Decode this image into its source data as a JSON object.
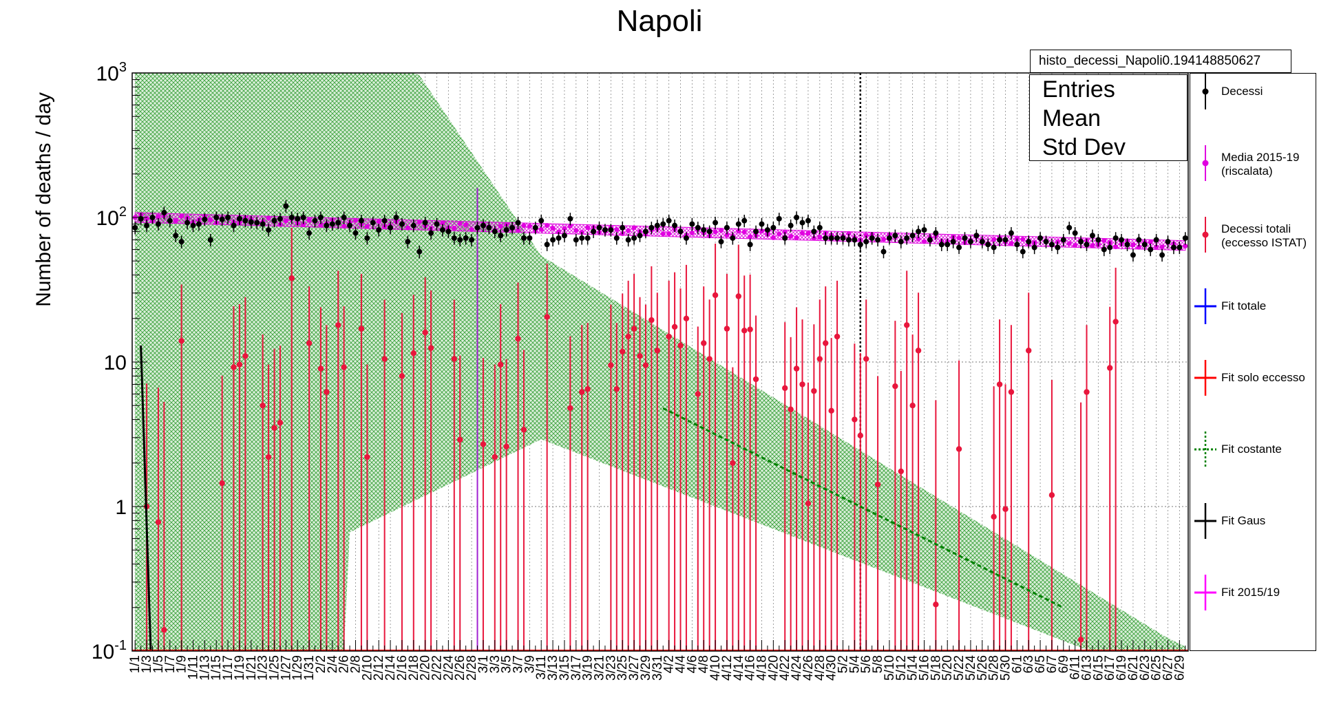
{
  "title": "Napoli",
  "stats_box": {
    "name": "histo_decessi_Napoli0.194148850627",
    "rows": [
      "Entries",
      "Mean",
      "Std Dev"
    ]
  },
  "legend": [
    {
      "label": "Decessi",
      "color": "#000000",
      "style": "marker"
    },
    {
      "label": "Media 2015-19\n(riscalata)",
      "color": "#e000e0",
      "style": "marker"
    },
    {
      "label": "Decessi totali\n(eccesso ISTAT)",
      "color": "#e8163c",
      "style": "marker"
    },
    {
      "label": "Fit totale",
      "color": "#0000ff",
      "style": "line"
    },
    {
      "label": "Fit solo eccesso",
      "color": "#ff0000",
      "style": "line"
    },
    {
      "label": "Fit costante",
      "color": "#008000",
      "style": "dashed"
    },
    {
      "label": "Fit Gaus",
      "color": "#000000",
      "style": "line"
    },
    {
      "label": "Fit 2015/19",
      "color": "#ff00ff",
      "style": "line"
    }
  ],
  "chart_data": {
    "type": "scatter",
    "title": "Napoli",
    "xlabel": "",
    "ylabel": "Number of deaths / day",
    "y_scale": "log",
    "ylim": [
      0.1,
      1000
    ],
    "y_tick_labels": [
      "10^{-1}",
      "1",
      "10",
      "10^{2}",
      "10^{3}"
    ],
    "x_tick_labels": [
      "1/1",
      "1/3",
      "1/5",
      "1/7",
      "1/9",
      "1/11",
      "1/13",
      "1/15",
      "1/17",
      "1/19",
      "1/21",
      "1/23",
      "1/25",
      "1/27",
      "1/29",
      "1/31",
      "2/2",
      "2/4",
      "2/6",
      "2/8",
      "2/10",
      "2/12",
      "2/14",
      "2/16",
      "2/18",
      "2/20",
      "2/22",
      "2/24",
      "2/26",
      "2/28",
      "3/1",
      "3/3",
      "3/5",
      "3/7",
      "3/9",
      "3/11",
      "3/13",
      "3/15",
      "3/17",
      "3/19",
      "3/21",
      "3/23",
      "3/25",
      "3/27",
      "3/29",
      "3/31",
      "4/2",
      "4/4",
      "4/6",
      "4/8",
      "4/10",
      "4/12",
      "4/14",
      "4/16",
      "4/18",
      "4/20",
      "4/22",
      "4/24",
      "4/26",
      "4/28",
      "4/30",
      "5/2",
      "5/4",
      "5/6",
      "5/8",
      "5/10",
      "5/12",
      "5/14",
      "5/16",
      "5/18",
      "5/20",
      "5/22",
      "5/24",
      "5/26",
      "5/28",
      "5/30",
      "6/1",
      "6/3",
      "6/5",
      "6/7",
      "6/9",
      "6/11",
      "6/13",
      "6/15",
      "6/17",
      "6/19",
      "6/21",
      "6/23",
      "6/25",
      "6/27",
      "6/29"
    ],
    "series": [
      {
        "name": "Decessi",
        "color": "#000000",
        "values": [
          85,
          98,
          88,
          100,
          90,
          108,
          95,
          75,
          68,
          92,
          88,
          90,
          97,
          70,
          100,
          97,
          100,
          88,
          98,
          95,
          93,
          92,
          90,
          82,
          95,
          98,
          120,
          100,
          98,
          100,
          78,
          95,
          100,
          88,
          90,
          92,
          100,
          88,
          78,
          95,
          72,
          92,
          82,
          95,
          85,
          100,
          90,
          68,
          88,
          58,
          92,
          78,
          90,
          82,
          80,
          72,
          70,
          72,
          70,
          85,
          88,
          85,
          80,
          75,
          82,
          85,
          92,
          72,
          72,
          85,
          95,
          65,
          70,
          72,
          75,
          98,
          70,
          72,
          72,
          80,
          85,
          82,
          82,
          72,
          85,
          70,
          72,
          75,
          80,
          85,
          88,
          90,
          95,
          88,
          80,
          72,
          90,
          85,
          82,
          80,
          92,
          68,
          85,
          72,
          90,
          95,
          65,
          80,
          90,
          82,
          85,
          98,
          72,
          88,
          100,
          92,
          95,
          80,
          85,
          72,
          72,
          72,
          72,
          70,
          70,
          65,
          68,
          72,
          70,
          58,
          72,
          75,
          68,
          72,
          75,
          80,
          82,
          70,
          78,
          65,
          65,
          68,
          62,
          72,
          68,
          75,
          68,
          65,
          62,
          70,
          70,
          78,
          65,
          58,
          68,
          62,
          72,
          68,
          65,
          62,
          70,
          85,
          78,
          68,
          65,
          75,
          70,
          60,
          62,
          72,
          70,
          65,
          55,
          70,
          65,
          60,
          70,
          55,
          68,
          62,
          62,
          72,
          65,
          68,
          70,
          70,
          65,
          60,
          65,
          38,
          58,
          68,
          65,
          62,
          65,
          60,
          60,
          58,
          78,
          62,
          62,
          55,
          58,
          62,
          60,
          58,
          60,
          55,
          58,
          55,
          52,
          62,
          60,
          48,
          55,
          50,
          62,
          60,
          58,
          68,
          72,
          62,
          85,
          70
        ],
        "error_frac": 0.1
      },
      {
        "name": "Media 2015-19 (riscalata)",
        "color": "#e000e0",
        "start": 100,
        "end": 64
      },
      {
        "name": "Decessi totali (eccesso ISTAT)",
        "color": "#e8163c",
        "points": [
          [
            2,
            1.0
          ],
          [
            4,
            0.78
          ],
          [
            5,
            0.14
          ],
          [
            8,
            14.0
          ],
          [
            15,
            1.45
          ],
          [
            17,
            9.2
          ],
          [
            18,
            9.6
          ],
          [
            19,
            11.0
          ],
          [
            22,
            5.0
          ],
          [
            23,
            2.2
          ],
          [
            24,
            3.5
          ],
          [
            25,
            3.8
          ],
          [
            27,
            38.0
          ],
          [
            30,
            13.5
          ],
          [
            32,
            9.0
          ],
          [
            33,
            6.2
          ],
          [
            35,
            18.0
          ],
          [
            36,
            9.2
          ],
          [
            39,
            17.0
          ],
          [
            40,
            2.2
          ],
          [
            43,
            10.5
          ],
          [
            46,
            8.0
          ],
          [
            48,
            11.5
          ],
          [
            50,
            16.0
          ],
          [
            51,
            12.5
          ],
          [
            55,
            10.5
          ],
          [
            56,
            2.9
          ],
          [
            60,
            2.7
          ],
          [
            62,
            2.2
          ],
          [
            63,
            9.6
          ],
          [
            64,
            2.6
          ],
          [
            66,
            14.5
          ],
          [
            67,
            3.4
          ],
          [
            71,
            20.5
          ],
          [
            75,
            4.8
          ],
          [
            77,
            6.2
          ],
          [
            78,
            6.5
          ],
          [
            82,
            9.5
          ],
          [
            83,
            6.5
          ],
          [
            84,
            11.8
          ],
          [
            85,
            15.0
          ],
          [
            86,
            17.0
          ],
          [
            87,
            11.0
          ],
          [
            88,
            9.5
          ],
          [
            89,
            19.5
          ],
          [
            90,
            12.0
          ],
          [
            92,
            15.0
          ],
          [
            93,
            17.5
          ],
          [
            94,
            13.0
          ],
          [
            95,
            20.0
          ],
          [
            97,
            6.0
          ],
          [
            98,
            13.5
          ],
          [
            99,
            10.5
          ],
          [
            100,
            29.0
          ],
          [
            102,
            17.0
          ],
          [
            103,
            2.0
          ],
          [
            104,
            28.5
          ],
          [
            105,
            16.5
          ],
          [
            106,
            16.8
          ],
          [
            107,
            7.6
          ],
          [
            112,
            6.6
          ],
          [
            113,
            4.7
          ],
          [
            114,
            9.0
          ],
          [
            115,
            7.0
          ],
          [
            116,
            1.05
          ],
          [
            117,
            6.3
          ],
          [
            118,
            10.5
          ],
          [
            119,
            13.5
          ],
          [
            120,
            4.6
          ],
          [
            121,
            15.0
          ],
          [
            124,
            4.0
          ],
          [
            125,
            3.1
          ],
          [
            126,
            10.5
          ],
          [
            128,
            1.42
          ],
          [
            131,
            6.8
          ],
          [
            132,
            1.75
          ],
          [
            133,
            18.0
          ],
          [
            134,
            5.0
          ],
          [
            135,
            12.0
          ],
          [
            138,
            0.21
          ],
          [
            142,
            2.5
          ],
          [
            148,
            0.85
          ],
          [
            149,
            7.0
          ],
          [
            150,
            0.96
          ],
          [
            151,
            6.2
          ],
          [
            154,
            12.0
          ],
          [
            158,
            1.2
          ],
          [
            163,
            0.12
          ],
          [
            164,
            6.2
          ],
          [
            168,
            9.1
          ],
          [
            169,
            19.0
          ]
        ]
      }
    ],
    "fit_costante": {
      "color": "#008000",
      "x_start": 91,
      "x_end": 160
    },
    "fit_gaus": {
      "color": "#000000"
    },
    "vertical_line": {
      "day": 125,
      "style": "dotted"
    },
    "grid": true
  }
}
